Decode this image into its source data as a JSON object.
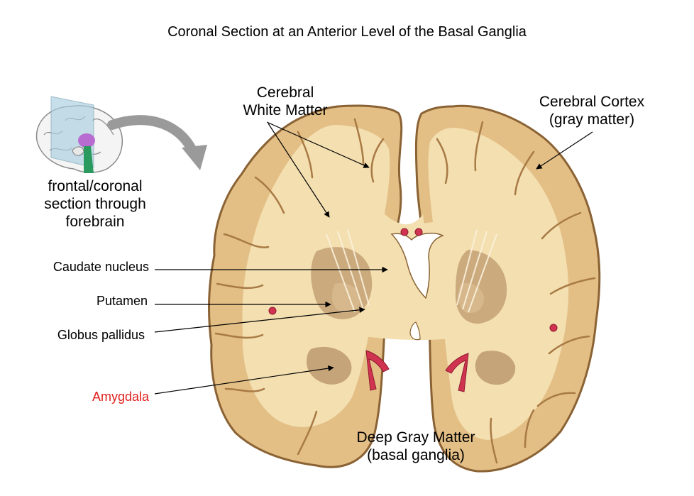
{
  "title": "Coronal Section at an Anterior Level of the Basal Ganglia",
  "labels": {
    "white_matter_line1": "Cerebral",
    "white_matter_line2": "White Matter",
    "cortex_line1": "Cerebral Cortex",
    "cortex_line2": "(gray matter)",
    "inset_line1": "frontal/coronal",
    "inset_line2": "section through",
    "inset_line3": "forebrain",
    "caudate": "Caudate nucleus",
    "putamen": "Putamen",
    "globus": "Globus pallidus",
    "amygdala": "Amygdala",
    "deep_gray_line1": "Deep Gray Matter",
    "deep_gray_line2": "(basal ganglia)"
  },
  "colors": {
    "amygdala_label": "#e0201c",
    "cortex": "#e3bf86",
    "cortex_edge": "#8a6234",
    "white_matter": "#f3dfb0",
    "gray_nuclei": "#c6a479",
    "vessels": "#d0334f",
    "arrow_gray": "#9a9a9a",
    "pointer_lines": "#000000"
  }
}
